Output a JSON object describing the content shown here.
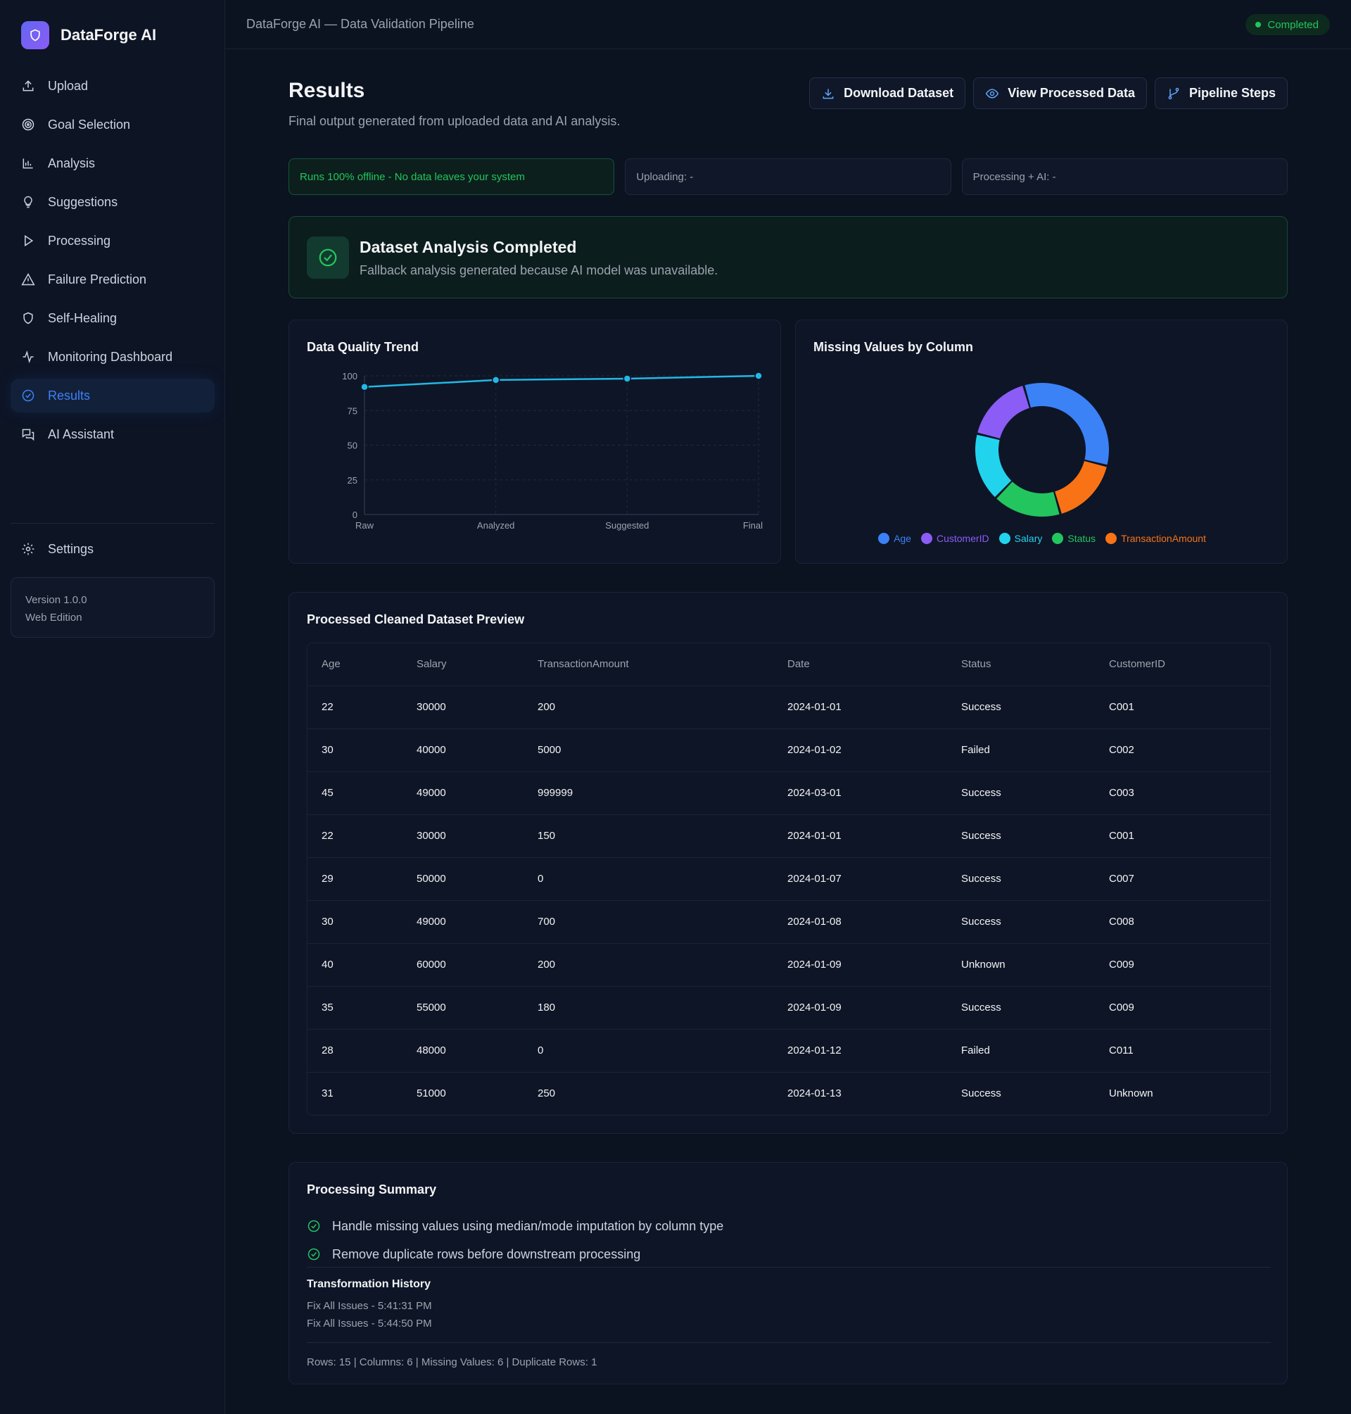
{
  "app": {
    "name": "DataForge AI"
  },
  "sidebar": {
    "items": [
      {
        "label": "Upload",
        "icon": "upload-icon"
      },
      {
        "label": "Goal Selection",
        "icon": "target-icon"
      },
      {
        "label": "Analysis",
        "icon": "bar-chart-icon"
      },
      {
        "label": "Suggestions",
        "icon": "lightbulb-icon"
      },
      {
        "label": "Processing",
        "icon": "play-icon"
      },
      {
        "label": "Failure Prediction",
        "icon": "warning-icon"
      },
      {
        "label": "Self-Healing",
        "icon": "shield-icon"
      },
      {
        "label": "Monitoring Dashboard",
        "icon": "activity-icon"
      },
      {
        "label": "Results",
        "icon": "check-circle-icon",
        "active": true
      },
      {
        "label": "AI Assistant",
        "icon": "chat-icon"
      }
    ],
    "settings_label": "Settings",
    "version": "Version 1.0.0",
    "edition": "Web Edition"
  },
  "topbar": {
    "title": "DataForge AI — Data Validation Pipeline",
    "status": "Completed"
  },
  "page": {
    "title": "Results",
    "subtitle": "Final output generated from uploaded data and AI analysis.",
    "actions": {
      "download": "Download Dataset",
      "view": "View Processed Data",
      "steps": "Pipeline Steps"
    }
  },
  "chips": {
    "offline": "Runs 100% offline - No data leaves your system",
    "uploading": "Uploading: -",
    "processing": "Processing + AI: -"
  },
  "completed": {
    "title": "Dataset Analysis Completed",
    "subtitle": "Fallback analysis generated because AI model was unavailable."
  },
  "colors": {
    "accent": "#3b82f6",
    "success": "#22c55e",
    "line": "#22b8e6"
  },
  "chart_data": [
    {
      "type": "line",
      "title": "Data Quality Trend",
      "categories": [
        "Raw",
        "Analyzed",
        "Suggested",
        "Final"
      ],
      "values": [
        92,
        97,
        98,
        100
      ],
      "ylim": [
        0,
        100
      ],
      "yticks": [
        0,
        25,
        50,
        75,
        100
      ],
      "grid": true
    },
    {
      "type": "pie",
      "title": "Missing Values by Column",
      "labels": [
        "Age",
        "CustomerID",
        "Salary",
        "Status",
        "TransactionAmount"
      ],
      "values": [
        2,
        1,
        1,
        1,
        1
      ],
      "colors": [
        "#3b82f6",
        "#8b5cf6",
        "#22d3ee",
        "#22c55e",
        "#f97316"
      ],
      "legend": "bottom"
    }
  ],
  "table": {
    "title": "Processed Cleaned Dataset Preview",
    "columns": [
      "Age",
      "Salary",
      "TransactionAmount",
      "Date",
      "Status",
      "CustomerID"
    ],
    "rows": [
      [
        "22",
        "30000",
        "200",
        "2024-01-01",
        "Success",
        "C001"
      ],
      [
        "30",
        "40000",
        "5000",
        "2024-01-02",
        "Failed",
        "C002"
      ],
      [
        "45",
        "49000",
        "999999",
        "2024-03-01",
        "Success",
        "C003"
      ],
      [
        "22",
        "30000",
        "150",
        "2024-01-01",
        "Success",
        "C001"
      ],
      [
        "29",
        "50000",
        "0",
        "2024-01-07",
        "Success",
        "C007"
      ],
      [
        "30",
        "49000",
        "700",
        "2024-01-08",
        "Success",
        "C008"
      ],
      [
        "40",
        "60000",
        "200",
        "2024-01-09",
        "Unknown",
        "C009"
      ],
      [
        "35",
        "55000",
        "180",
        "2024-01-09",
        "Success",
        "C009"
      ],
      [
        "28",
        "48000",
        "0",
        "2024-01-12",
        "Failed",
        "C011"
      ],
      [
        "31",
        "51000",
        "250",
        "2024-01-13",
        "Success",
        "Unknown"
      ]
    ]
  },
  "summary": {
    "title": "Processing Summary",
    "items": [
      "Handle missing values using median/mode imputation by column type",
      "Remove duplicate rows before downstream processing"
    ],
    "history_title": "Transformation History",
    "history": [
      "Fix All Issues - 5:41:31 PM",
      "Fix All Issues - 5:44:50 PM"
    ],
    "stats": "Rows: 15 | Columns: 6 | Missing Values: 6 | Duplicate Rows: 1"
  }
}
